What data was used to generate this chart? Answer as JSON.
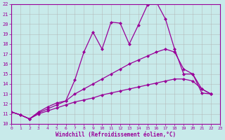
{
  "xlabel": "Windchill (Refroidissement éolien,°C)",
  "background_color": "#c8eaea",
  "line_color": "#990099",
  "grid_color": "#b0b0b0",
  "xlim": [
    0,
    23
  ],
  "ylim": [
    10,
    22
  ],
  "xticks": [
    0,
    1,
    2,
    3,
    4,
    5,
    6,
    7,
    8,
    9,
    10,
    11,
    12,
    13,
    14,
    15,
    16,
    17,
    18,
    19,
    20,
    21,
    22,
    23
  ],
  "yticks": [
    10,
    11,
    12,
    13,
    14,
    15,
    16,
    17,
    18,
    19,
    20,
    21,
    22
  ],
  "series1_x": [
    0,
    1,
    2,
    3,
    4,
    5,
    6,
    7,
    8,
    9,
    10,
    11,
    12,
    13,
    14,
    15,
    16,
    17,
    18,
    19,
    20,
    21,
    22
  ],
  "series1_y": [
    11.2,
    10.9,
    10.5,
    11.2,
    11.7,
    12.1,
    12.3,
    14.4,
    17.2,
    19.2,
    17.5,
    20.2,
    20.1,
    18.0,
    19.9,
    21.9,
    22.2,
    20.5,
    17.5,
    15.0,
    15.0,
    13.1,
    13.0
  ],
  "series2_x": [
    0,
    1,
    2,
    3,
    4,
    5,
    6,
    7,
    8,
    9,
    10,
    11,
    12,
    13,
    14,
    15,
    16,
    17,
    18,
    19,
    20,
    21,
    22
  ],
  "series2_y": [
    11.2,
    10.9,
    10.5,
    11.1,
    11.5,
    11.9,
    12.3,
    13.0,
    13.5,
    14.0,
    14.5,
    15.0,
    15.5,
    16.0,
    16.4,
    16.8,
    17.2,
    17.5,
    17.2,
    15.5,
    15.0,
    13.5,
    13.0
  ],
  "series3_x": [
    0,
    1,
    2,
    3,
    4,
    5,
    6,
    7,
    8,
    9,
    10,
    11,
    12,
    13,
    14,
    15,
    16,
    17,
    18,
    19,
    20,
    21,
    22
  ],
  "series3_y": [
    11.2,
    10.9,
    10.5,
    11.0,
    11.3,
    11.6,
    11.9,
    12.2,
    12.4,
    12.6,
    12.9,
    13.1,
    13.3,
    13.5,
    13.7,
    13.9,
    14.1,
    14.3,
    14.5,
    14.5,
    14.3,
    13.5,
    13.0
  ],
  "markersize": 2.5,
  "linewidth": 0.9
}
